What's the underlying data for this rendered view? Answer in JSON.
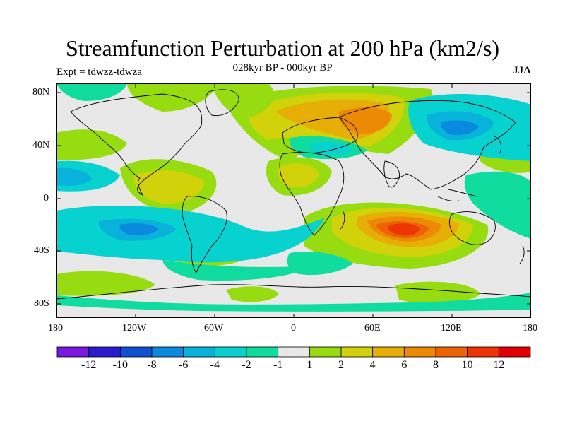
{
  "title": "Streamfunction Perturbation at 200 hPa (km2/s)",
  "subtitle": "028kyr BP - 000kyr BP",
  "experiment": "Expt = tdwzz-tdwza",
  "season": "JJA",
  "lat_labels": [
    "80N",
    "40N",
    "0",
    "40S",
    "80S"
  ],
  "lon_labels": [
    "180",
    "120W",
    "60W",
    "0",
    "60E",
    "120E",
    "180"
  ],
  "colorbar": {
    "labels": [
      "-12",
      "-10",
      "-8",
      "-6",
      "-4",
      "-2",
      "-1",
      "1",
      "2",
      "4",
      "6",
      "8",
      "10",
      "12"
    ],
    "colors": [
      "#7b18e0",
      "#2c1bd2",
      "#1250d2",
      "#0a8ade",
      "#08b2da",
      "#08d2d0",
      "#10dca0",
      "#e8e8e8",
      "#96dc10",
      "#d2d20a",
      "#e6ae06",
      "#ec8a06",
      "#ec6204",
      "#ec3404",
      "#e00000"
    ]
  },
  "colors": {
    "land_outline": "#000000",
    "neutral": "#e8e8e8"
  }
}
